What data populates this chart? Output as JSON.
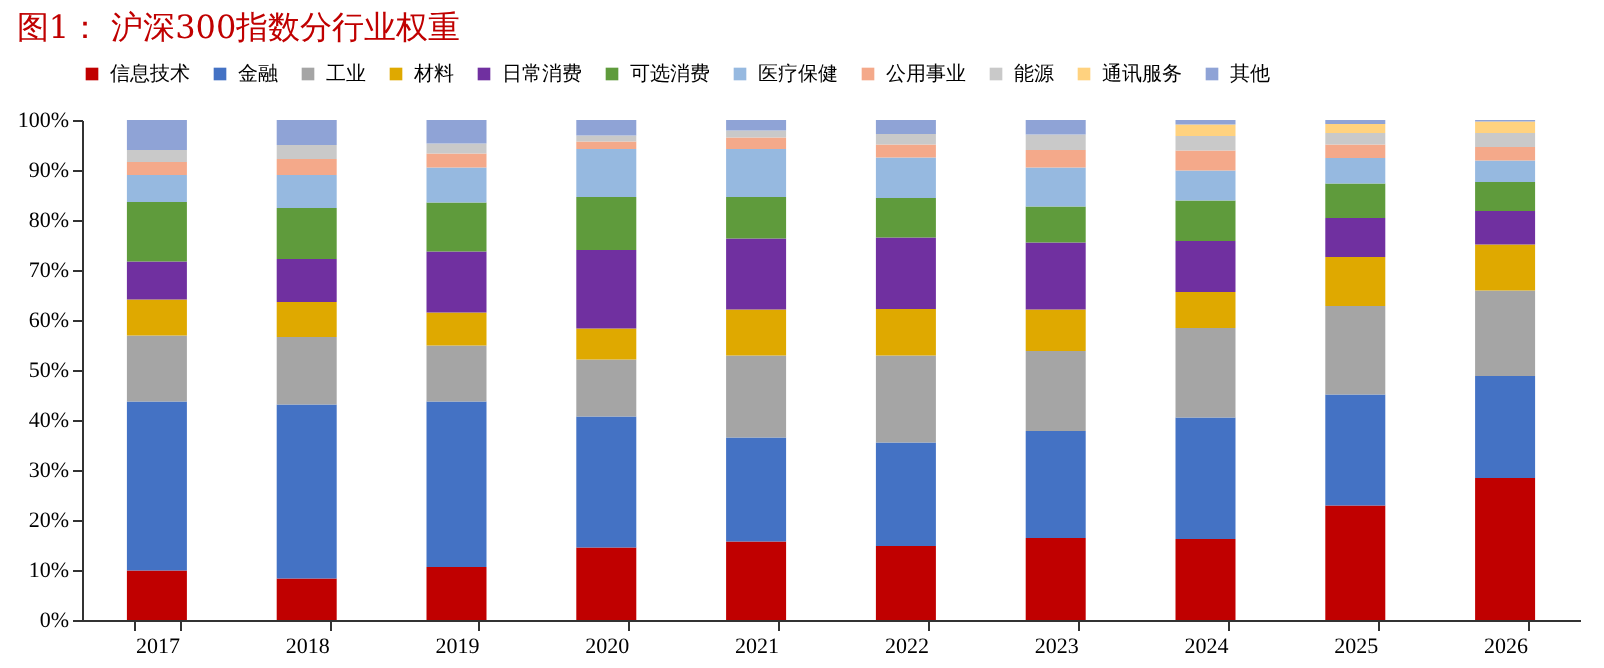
{
  "chart_data": {
    "type": "bar",
    "stacked": true,
    "title": "图1：  沪深300指数分行业权重",
    "categories": [
      "2017",
      "2018",
      "2019",
      "2020",
      "2021",
      "2022",
      "2023",
      "2024",
      "2025",
      "2026"
    ],
    "series": [
      {
        "name": "信息技术",
        "color": "#c00000",
        "values": [
          9.9,
          8.3,
          10.6,
          14.5,
          15.7,
          14.8,
          16.4,
          16.2,
          22.9,
          28.4
        ]
      },
      {
        "name": "金融",
        "color": "#4472c4",
        "values": [
          33.8,
          34.8,
          33.1,
          26.2,
          20.8,
          20.7,
          21.4,
          24.3,
          22.2,
          20.4
        ]
      },
      {
        "name": "工业",
        "color": "#a5a5a5",
        "values": [
          13.2,
          13.5,
          11.2,
          11.4,
          16.4,
          17.4,
          16.0,
          17.9,
          17.7,
          17.1
        ]
      },
      {
        "name": "材料",
        "color": "#dfa900",
        "values": [
          7.2,
          7.0,
          6.6,
          6.2,
          9.2,
          9.3,
          8.3,
          7.2,
          9.8,
          9.2
        ]
      },
      {
        "name": "日常消费",
        "color": "#7030a0",
        "values": [
          7.6,
          8.6,
          12.2,
          15.7,
          14.2,
          14.3,
          13.4,
          10.2,
          7.8,
          6.7
        ]
      },
      {
        "name": "可选消费",
        "color": "#5f9b3c",
        "values": [
          11.9,
          10.2,
          9.8,
          10.6,
          8.3,
          7.9,
          7.2,
          8.1,
          6.9,
          5.8
        ]
      },
      {
        "name": "医疗保健",
        "color": "#96b9e0",
        "values": [
          5.4,
          6.6,
          7.0,
          9.6,
          9.6,
          8.1,
          7.8,
          6.0,
          5.1,
          4.3
        ]
      },
      {
        "name": "公用事业",
        "color": "#f4a98a",
        "values": [
          2.6,
          3.2,
          2.8,
          1.5,
          2.3,
          2.6,
          3.5,
          4.0,
          2.7,
          2.7
        ]
      },
      {
        "name": "能源",
        "color": "#c9c9c9",
        "values": [
          2.4,
          2.8,
          2.0,
          1.2,
          1.4,
          2.1,
          3.1,
          2.9,
          2.3,
          2.8
        ]
      },
      {
        "name": "通讯服务",
        "color": "#ffd27f",
        "values": [
          null,
          null,
          null,
          null,
          null,
          null,
          null,
          2.3,
          1.8,
          2.3
        ]
      },
      {
        "name": "其他",
        "color": "#8fa3d6",
        "values": [
          6.0,
          5.0,
          4.7,
          3.1,
          2.1,
          2.8,
          2.9,
          0.9,
          0.8,
          0.3
        ]
      }
    ],
    "ylim": [
      0,
      100
    ],
    "yticks": [
      {
        "value": 0,
        "label": "0%"
      },
      {
        "value": 10,
        "label": "10%"
      },
      {
        "value": 20,
        "label": "20%"
      },
      {
        "value": 30,
        "label": "30%"
      },
      {
        "value": 40,
        "label": "40%"
      },
      {
        "value": 50,
        "label": "50%"
      },
      {
        "value": 60,
        "label": "60%"
      },
      {
        "value": 70,
        "label": "70%"
      },
      {
        "value": 80,
        "label": "80%"
      },
      {
        "value": 90,
        "label": "90%"
      },
      {
        "value": 100,
        "label": "100%"
      }
    ],
    "grid": false,
    "legend": "top"
  }
}
